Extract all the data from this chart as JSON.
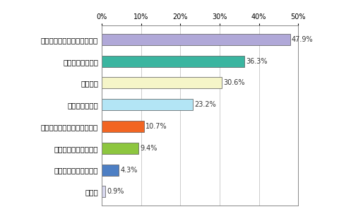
{
  "categories": [
    "その他",
    "家族が乗れるミニバン",
    "クリーンディーゼル車",
    "燃費にはこだわらず欲しい車",
    "コンパクトカー",
    "軽自動車",
    "ハイブリッドカー",
    "欲しい車の中で燃費の良い車"
  ],
  "values": [
    0.9,
    4.3,
    9.4,
    10.7,
    23.2,
    30.6,
    36.3,
    47.9
  ],
  "bar_colors": [
    "#d8d8ee",
    "#4d7fc4",
    "#8dc63f",
    "#f26522",
    "#b3e5f5",
    "#f5f5c8",
    "#3ab5a0",
    "#b0a8d8"
  ],
  "bar_edge_color": "#555555",
  "xlim": [
    0,
    50
  ],
  "xticks": [
    0,
    10,
    20,
    30,
    40,
    50
  ],
  "xtick_labels": [
    "0%",
    "10%",
    "20%",
    "30%",
    "40%",
    "50%"
  ],
  "value_label_fontsize": 7,
  "tick_fontsize": 7,
  "ylabel_fontsize": 7.5,
  "bg_color": "#ffffff",
  "grid_color": "#cccccc",
  "bar_height": 0.52
}
